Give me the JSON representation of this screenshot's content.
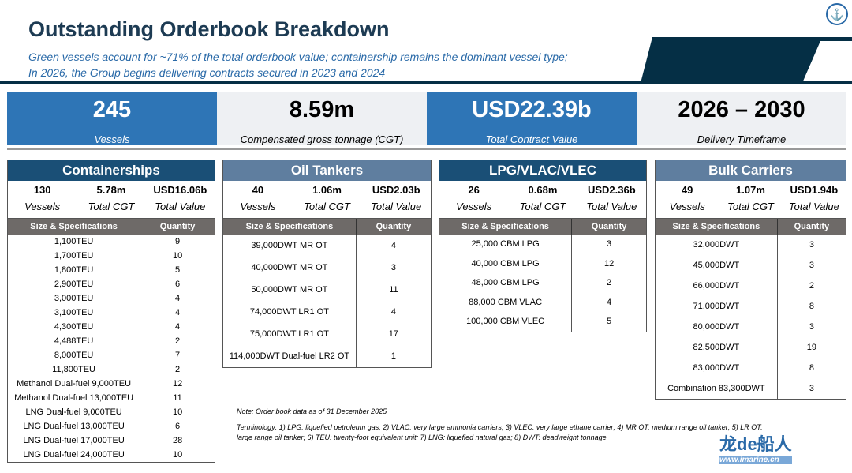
{
  "header": {
    "title": "Outstanding Orderbook Breakdown",
    "subtitle_line1": "Green vessels account for ~71% of the total orderbook value; containership remains the dominant vessel type;",
    "subtitle_line2": "In 2026, the Group begins delivering contracts secured in 2023 and 2024"
  },
  "kpis": [
    {
      "value": "245",
      "label": "Vessels"
    },
    {
      "value": "8.59m",
      "label": "Compensated gross tonnage (CGT)"
    },
    {
      "value": "USD22.39b",
      "label": "Total Contract Value"
    },
    {
      "value": "2026 – 2030",
      "label": "Delivery Timeframe"
    }
  ],
  "colors": {
    "kpi_blue": "#2e75b6",
    "panel_dark": "#1a4f76",
    "panel_light": "#5f7e9f",
    "column_header": "#6e6a68"
  },
  "col_headers": {
    "spec": "Size & Specifications",
    "qty": "Quantity"
  },
  "stat_labels": {
    "vessels": "Vessels",
    "cgt": "Total CGT",
    "value": "Total Value"
  },
  "panels": [
    {
      "title": "Containerships",
      "vessels": "130",
      "cgt": "5.78m",
      "value": "USD16.06b",
      "rows": [
        [
          "1,100TEU",
          "9"
        ],
        [
          "1,700TEU",
          "10"
        ],
        [
          "1,800TEU",
          "5"
        ],
        [
          "2,900TEU",
          "6"
        ],
        [
          "3,000TEU",
          "4"
        ],
        [
          "3,100TEU",
          "4"
        ],
        [
          "4,300TEU",
          "4"
        ],
        [
          "4,488TEU",
          "2"
        ],
        [
          "8,000TEU",
          "7"
        ],
        [
          "11,800TEU",
          "2"
        ],
        [
          "Methanol Dual-fuel 9,000TEU",
          "12"
        ],
        [
          "Methanol Dual-fuel 13,000TEU",
          "11"
        ],
        [
          "LNG Dual-fuel 9,000TEU",
          "10"
        ],
        [
          "LNG Dual-fuel 13,000TEU",
          "6"
        ],
        [
          "LNG Dual-fuel 17,000TEU",
          "28"
        ],
        [
          "LNG Dual-fuel 24,000TEU",
          "10"
        ]
      ]
    },
    {
      "title": "Oil Tankers",
      "vessels": "40",
      "cgt": "1.06m",
      "value": "USD2.03b",
      "rows": [
        [
          "39,000DWT MR OT",
          "4"
        ],
        [
          "40,000DWT MR OT",
          "3"
        ],
        [
          "50,000DWT MR OT",
          "11"
        ],
        [
          "74,000DWT LR1 OT",
          "4"
        ],
        [
          "75,000DWT LR1 OT",
          "17"
        ],
        [
          "114,000DWT Dual-fuel LR2 OT",
          "1"
        ]
      ]
    },
    {
      "title": "LPG/VLAC/VLEC",
      "vessels": "26",
      "cgt": "0.68m",
      "value": "USD2.36b",
      "rows": [
        [
          "25,000 CBM LPG",
          "3"
        ],
        [
          "40,000 CBM LPG",
          "12"
        ],
        [
          "48,000 CBM LPG",
          "2"
        ],
        [
          "88,000 CBM VLAC",
          "4"
        ],
        [
          "100,000 CBM VLEC",
          "5"
        ]
      ]
    },
    {
      "title": "Bulk Carriers",
      "vessels": "49",
      "cgt": "1.07m",
      "value": "USD1.94b",
      "rows": [
        [
          "32,000DWT",
          "3"
        ],
        [
          "45,000DWT",
          "3"
        ],
        [
          "66,000DWT",
          "2"
        ],
        [
          "71,000DWT",
          "8"
        ],
        [
          "80,000DWT",
          "3"
        ],
        [
          "82,500DWT",
          "19"
        ],
        [
          "83,000DWT",
          "8"
        ],
        [
          "Combination 83,300DWT",
          "3"
        ]
      ]
    }
  ],
  "footer": {
    "note": "Note: Order book data as of 31 December 2025",
    "terminology": "Terminology: 1) LPG: liquefied petroleum gas; 2) VLAC: very large ammonia carriers; 3) VLEC: very large ethane carrier; 4) MR OT: medium range oil tanker; 5) LR OT: large range oil tanker; 6) TEU: twenty-foot equivalent unit; 7) LNG: liquefied natural gas; 8) DWT: deadweight tonnage"
  },
  "watermark": {
    "text": "龙de船人",
    "url": "www.imarine.cn"
  }
}
